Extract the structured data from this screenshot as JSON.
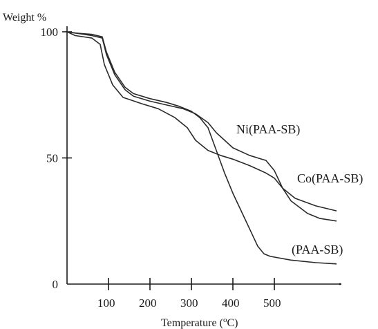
{
  "chart_data": {
    "type": "line",
    "ylabel": "Weight %",
    "xlabel": "Temperature (°C)",
    "xlabel_main": "Temperature (",
    "xlabel_sup": "o",
    "xlabel_end": "C)",
    "xlim": [
      0,
      650
    ],
    "ylim": [
      0,
      100
    ],
    "x_ticks": [
      100,
      200,
      300,
      400,
      500
    ],
    "y_ticks": [
      0,
      50,
      100
    ],
    "series": [
      {
        "name": "Ni(PAA-SB)",
        "points": [
          [
            0,
            100
          ],
          [
            20,
            99.5
          ],
          [
            60,
            98.5
          ],
          [
            85,
            97.5
          ],
          [
            95,
            91
          ],
          [
            115,
            83
          ],
          [
            140,
            77
          ],
          [
            160,
            74.5
          ],
          [
            200,
            72.5
          ],
          [
            240,
            71
          ],
          [
            280,
            69.5
          ],
          [
            310,
            67.5
          ],
          [
            340,
            64
          ],
          [
            360,
            60
          ],
          [
            400,
            54
          ],
          [
            440,
            51
          ],
          [
            480,
            49
          ],
          [
            500,
            45
          ],
          [
            520,
            38
          ],
          [
            550,
            34
          ],
          [
            600,
            31
          ],
          [
            650,
            29
          ]
        ]
      },
      {
        "name": "Co(PAA-SB)",
        "points": [
          [
            0,
            100
          ],
          [
            20,
            98.5
          ],
          [
            60,
            97.5
          ],
          [
            80,
            95
          ],
          [
            90,
            87
          ],
          [
            110,
            79
          ],
          [
            135,
            74
          ],
          [
            180,
            71.5
          ],
          [
            220,
            69.5
          ],
          [
            260,
            66
          ],
          [
            290,
            62
          ],
          [
            310,
            57
          ],
          [
            340,
            53
          ],
          [
            370,
            51
          ],
          [
            400,
            49.5
          ],
          [
            440,
            47
          ],
          [
            480,
            44
          ],
          [
            500,
            42
          ],
          [
            520,
            38
          ],
          [
            540,
            33
          ],
          [
            580,
            28
          ],
          [
            610,
            26
          ],
          [
            650,
            25
          ]
        ]
      },
      {
        "name": "(PAA-SB)",
        "points": [
          [
            0,
            100
          ],
          [
            20,
            99.5
          ],
          [
            60,
            99
          ],
          [
            85,
            98
          ],
          [
            95,
            92
          ],
          [
            115,
            84
          ],
          [
            140,
            78
          ],
          [
            160,
            75.5
          ],
          [
            200,
            73.5
          ],
          [
            240,
            72
          ],
          [
            270,
            70.5
          ],
          [
            300,
            68.5
          ],
          [
            320,
            66
          ],
          [
            340,
            62
          ],
          [
            360,
            53
          ],
          [
            380,
            44
          ],
          [
            400,
            36
          ],
          [
            420,
            29
          ],
          [
            440,
            22
          ],
          [
            460,
            15
          ],
          [
            475,
            12
          ],
          [
            490,
            11
          ],
          [
            540,
            9.5
          ],
          [
            600,
            8.5
          ],
          [
            650,
            8
          ]
        ]
      }
    ],
    "series_labels": [
      "Ni(PAA-SB)",
      "Co(PAA-SB)",
      "(PAA-SB)"
    ]
  }
}
